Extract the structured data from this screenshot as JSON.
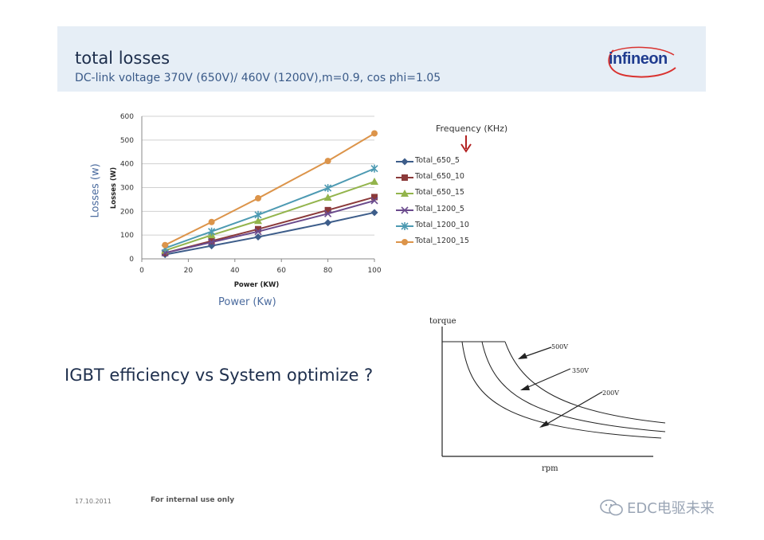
{
  "slide": {
    "title": "total losses",
    "subtitle": "DC-link voltage 370V (650V)/ 460V (1200V),m=0.9, cos phi=1.05",
    "logo_text": "infineon",
    "losses_side_label": "Losses (w)",
    "power_side_label": "Power (Kw)",
    "frequency_label": "Frequency (KHz)",
    "question": "IGBT efficiency vs System optimize ?",
    "footer_date": "17.10.2011",
    "footer_note": "For internal use only",
    "watermark": "EDC电驱未来"
  },
  "chart_data": [
    {
      "type": "line",
      "xlabel": "Power (KW)",
      "ylabel": "Losses (W)",
      "xlim": [
        0,
        100
      ],
      "ylim": [
        0,
        600
      ],
      "x_ticks": [
        "0",
        "20",
        "40",
        "60",
        "80",
        "100"
      ],
      "y_ticks": [
        "0",
        "100",
        "200",
        "300",
        "400",
        "500",
        "600"
      ],
      "x": [
        10,
        30,
        50,
        80,
        100
      ],
      "grid": "horizontal",
      "legend_position": "right",
      "series": [
        {
          "name": "Total_650_5",
          "values": [
            18,
            55,
            92,
            152,
            195
          ],
          "color": "#3d5d8a",
          "marker": "diamond"
        },
        {
          "name": "Total_650_10",
          "values": [
            25,
            75,
            125,
            205,
            260
          ],
          "color": "#8b3a3a",
          "marker": "square"
        },
        {
          "name": "Total_650_15",
          "values": [
            35,
            100,
            160,
            258,
            325
          ],
          "color": "#93b44c",
          "marker": "triangle"
        },
        {
          "name": "Total_1200_5",
          "values": [
            25,
            70,
            115,
            190,
            245
          ],
          "color": "#6a4a8c",
          "marker": "x"
        },
        {
          "name": "Total_1200_10",
          "values": [
            45,
            115,
            185,
            298,
            380
          ],
          "color": "#4d9ab2",
          "marker": "star"
        },
        {
          "name": "Total_1200_15",
          "values": [
            58,
            155,
            255,
            412,
            528
          ],
          "color": "#dc944a",
          "marker": "circle"
        }
      ]
    },
    {
      "type": "line",
      "xlabel": "rpm",
      "ylabel": "torque",
      "series": [
        {
          "name": "500V"
        },
        {
          "name": "350V"
        },
        {
          "name": "200V"
        }
      ]
    }
  ]
}
